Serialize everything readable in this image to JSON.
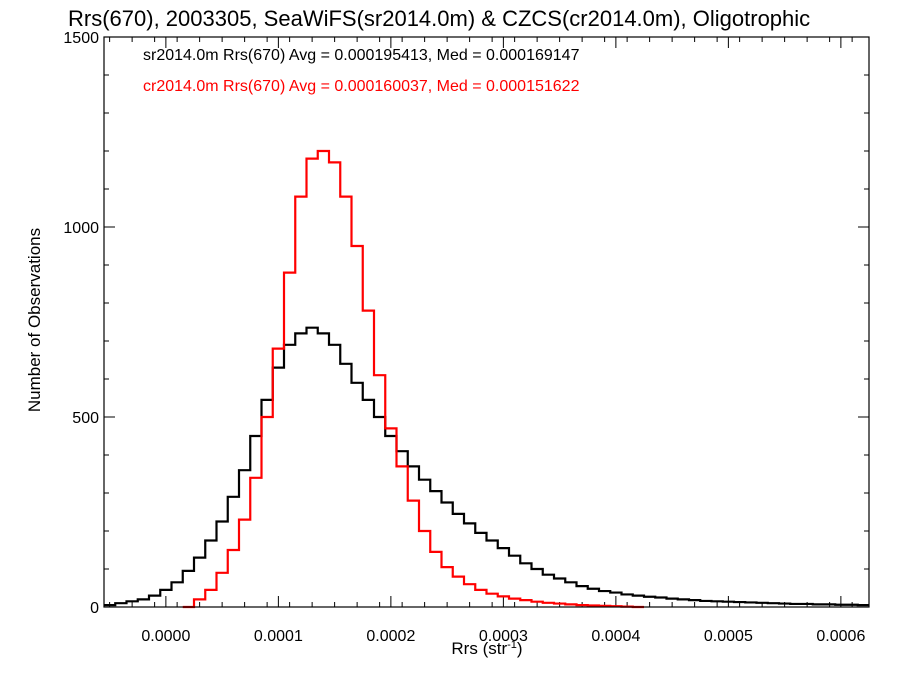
{
  "chart_data": {
    "type": "histogram",
    "title": "Rrs(670), 2003305, SeaWiFS(sr2014.0m) & CZCS(cr2014.0m), Oligotrophic",
    "xlabel_base": "Rrs (str",
    "xlabel_sup": "-1",
    "xlabel_end": ")",
    "ylabel": "Number of Observations",
    "xlim": [
      -5.5e-05,
      0.000625
    ],
    "ylim": [
      0,
      1500
    ],
    "x_ticks": [
      0.0,
      0.0001,
      0.0002,
      0.0003,
      0.0004,
      0.0005,
      0.0006
    ],
    "x_tick_labels": [
      "0.0000",
      "0.0001",
      "0.0002",
      "0.0003",
      "0.0004",
      "0.0005",
      "0.0006"
    ],
    "y_ticks": [
      0,
      500,
      1000,
      1500
    ],
    "y_tick_labels": [
      "0",
      "500",
      "1000",
      "1500"
    ],
    "colors": {
      "sr2014": "#000000",
      "cr2014": "#ff0000"
    },
    "legend": [
      {
        "text": "sr2014.0m Rrs(670) Avg = 0.000195413, Med = 0.000169147",
        "color": "#000000"
      },
      {
        "text": "cr2014.0m Rrs(670) Avg = 0.000160037, Med = 0.000151622",
        "color": "#ff0000"
      }
    ],
    "series": [
      {
        "name": "sr2014.0m Rrs(670)",
        "color": "#000000",
        "x": [
          -5e-05,
          -4e-05,
          -3e-05,
          -2e-05,
          -1e-05,
          0.0,
          1e-05,
          2e-05,
          3e-05,
          4e-05,
          5e-05,
          6e-05,
          7e-05,
          8e-05,
          9e-05,
          0.0001,
          0.00011,
          0.00012,
          0.00013,
          0.00014,
          0.00015,
          0.00016,
          0.00017,
          0.00018,
          0.00019,
          0.0002,
          0.00021,
          0.00022,
          0.00023,
          0.00024,
          0.00025,
          0.00026,
          0.00027,
          0.00028,
          0.00029,
          0.0003,
          0.00031,
          0.00032,
          0.00033,
          0.00034,
          0.00035,
          0.00036,
          0.00037,
          0.00038,
          0.00039,
          0.0004,
          0.00041,
          0.00042,
          0.00043,
          0.00044,
          0.00045,
          0.00046,
          0.00047,
          0.00048,
          0.00049,
          0.0005,
          0.00051,
          0.00052,
          0.00053,
          0.00054,
          0.00055,
          0.00056,
          0.00057,
          0.00058,
          0.00059,
          0.0006,
          0.00061,
          0.00062
        ],
        "y": [
          5,
          10,
          15,
          20,
          30,
          45,
          65,
          95,
          130,
          175,
          225,
          290,
          360,
          450,
          545,
          630,
          690,
          720,
          735,
          720,
          690,
          640,
          590,
          545,
          500,
          450,
          410,
          370,
          335,
          305,
          275,
          245,
          220,
          195,
          175,
          155,
          135,
          115,
          100,
          85,
          75,
          65,
          55,
          48,
          42,
          38,
          33,
          30,
          27,
          25,
          22,
          20,
          18,
          16,
          15,
          14,
          13,
          12,
          11,
          10,
          9,
          8,
          8,
          7,
          7,
          6,
          6,
          5
        ]
      },
      {
        "name": "cr2014.0m Rrs(670)",
        "color": "#ff0000",
        "x": [
          2e-05,
          3e-05,
          4e-05,
          5e-05,
          6e-05,
          7e-05,
          8e-05,
          9e-05,
          0.0001,
          0.00011,
          0.00012,
          0.00013,
          0.00014,
          0.00015,
          0.00016,
          0.00017,
          0.00018,
          0.00019,
          0.0002,
          0.00021,
          0.00022,
          0.00023,
          0.00024,
          0.00025,
          0.00026,
          0.00027,
          0.00028,
          0.00029,
          0.0003,
          0.00031,
          0.00032,
          0.00033,
          0.00034,
          0.00035,
          0.00036,
          0.00037,
          0.00038,
          0.00039,
          0.0004,
          0.00041,
          0.00042
        ],
        "y": [
          0,
          20,
          45,
          90,
          150,
          230,
          340,
          500,
          680,
          880,
          1080,
          1180,
          1200,
          1170,
          1080,
          950,
          780,
          610,
          470,
          370,
          280,
          200,
          145,
          105,
          80,
          60,
          45,
          35,
          28,
          22,
          18,
          14,
          11,
          9,
          7,
          5,
          4,
          3,
          2,
          1,
          0
        ]
      }
    ]
  }
}
